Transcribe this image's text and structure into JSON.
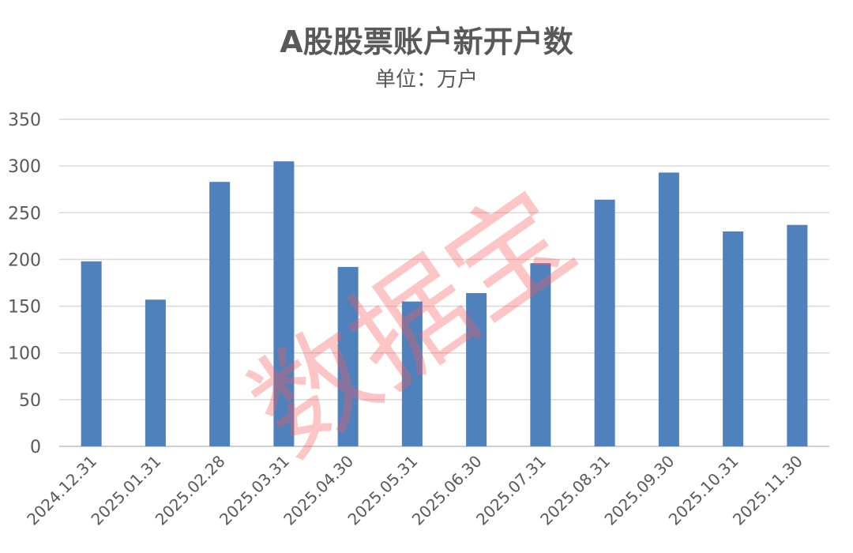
{
  "chart_data": {
    "type": "bar",
    "title": "A股股票账户新开户数",
    "subtitle": "单位：万户",
    "categories": [
      "2024.12.31",
      "2025.01.31",
      "2025.02.28",
      "2025.03.31",
      "2025.04.30",
      "2025.05.31",
      "2025.06.30",
      "2025.07.31",
      "2025.08.31",
      "2025.09.30",
      "2025.10.31",
      "2025.11.30"
    ],
    "values": [
      198,
      157,
      283,
      305,
      192,
      155,
      164,
      196,
      264,
      293,
      230,
      237
    ],
    "ylim": [
      0,
      350
    ],
    "yticks": [
      0,
      50,
      100,
      150,
      200,
      250,
      300,
      350
    ],
    "grid": true,
    "legend": "none",
    "bar_color": "#4f81bd",
    "watermark": "数据宝"
  }
}
